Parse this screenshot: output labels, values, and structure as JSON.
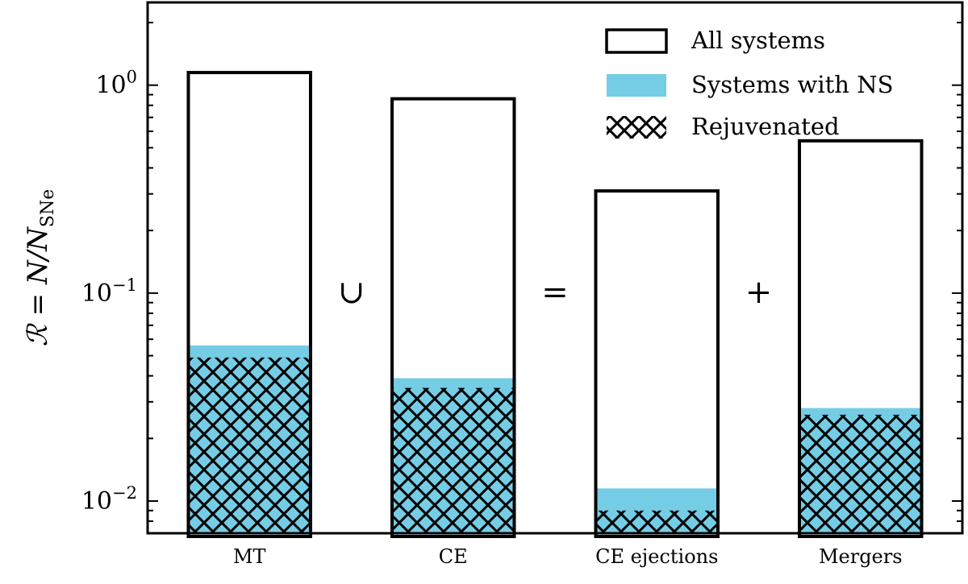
{
  "chart_data": {
    "type": "bar",
    "yscale": "log",
    "ylim": [
      0.007,
      2.5
    ],
    "categories": [
      "MT",
      "CE",
      "CE ejections",
      "Mergers"
    ],
    "series": [
      {
        "name": "All systems",
        "values": [
          1.15,
          0.86,
          0.31,
          0.54
        ],
        "style": "outline"
      },
      {
        "name": "Systems with NS",
        "values": [
          0.056,
          0.039,
          0.0115,
          0.028
        ],
        "style": "fill"
      },
      {
        "name": "Rejuvenated",
        "values": [
          0.049,
          0.035,
          0.009,
          0.026
        ],
        "style": "hatch"
      }
    ],
    "operators": [
      "∪",
      "=",
      "+"
    ],
    "ylabel": "ℛ = N/N",
    "ylabel_subscript": "SNe",
    "y_ticks": [
      {
        "value": 1,
        "base": "10",
        "exp": "0"
      },
      {
        "value": 0.1,
        "base": "10",
        "exp": "−1"
      },
      {
        "value": 0.01,
        "base": "10",
        "exp": "−2"
      }
    ],
    "legend_position": "top-right",
    "grid": false,
    "colors": {
      "ns_fill": "#74cde5",
      "outline": "#000000",
      "hatch": "#000000"
    }
  }
}
